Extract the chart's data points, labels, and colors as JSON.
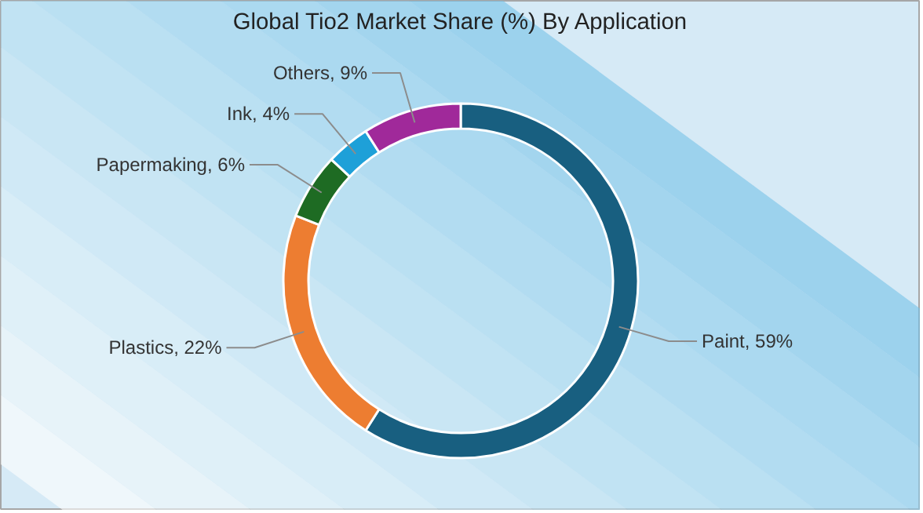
{
  "chart_data": {
    "type": "donut",
    "title": "Global Tio2 Market Share (%) By Application",
    "categories": [
      "Paint",
      "Plastics",
      "Papermaking",
      "Ink",
      "Others"
    ],
    "values": [
      59,
      22,
      6,
      4,
      9
    ],
    "colors": [
      "#185f80",
      "#ed7d31",
      "#1e6b23",
      "#1ea0d8",
      "#a0299a"
    ],
    "value_labels": [
      "59%",
      "22%",
      "6%",
      "4%",
      "9%"
    ]
  }
}
